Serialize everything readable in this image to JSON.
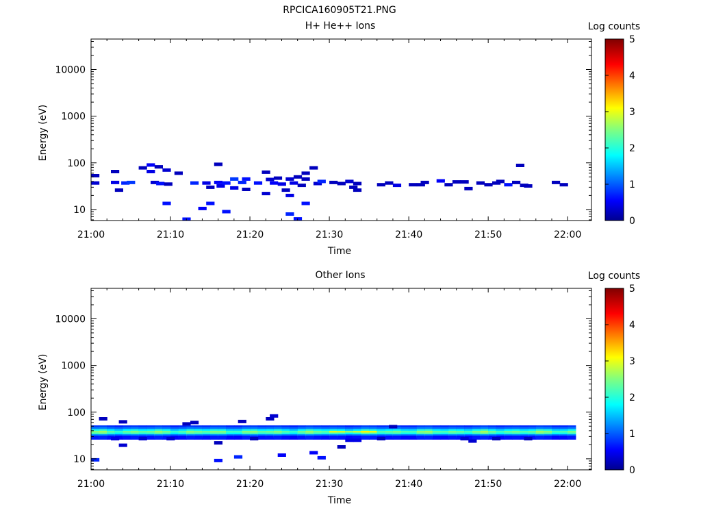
{
  "figure_title": "RPCICA160905T21.PNG",
  "chart_data": [
    {
      "type": "heatmap",
      "title": "H+ He++ Ions",
      "xlabel": "Time",
      "ylabel": "Energy (eV)",
      "x_ticks": [
        "21:00",
        "21:10",
        "21:20",
        "21:30",
        "21:40",
        "21:50",
        "22:00"
      ],
      "y_ticks": [
        "10",
        "100",
        "1000",
        "10000"
      ],
      "y_scale": "log",
      "ylim": [
        5.8,
        45000
      ],
      "xlim_minutes": [
        0,
        63
      ],
      "colorbar": {
        "label": "Log counts",
        "ticks": [
          "0",
          "1",
          "2",
          "3",
          "4",
          "5"
        ],
        "range": [
          0,
          5
        ]
      },
      "cells": [
        [
          0.0,
          53,
          0.3
        ],
        [
          0.0,
          37,
          0.4
        ],
        [
          2.5,
          65,
          0.3
        ],
        [
          2.5,
          38,
          0.5
        ],
        [
          3.0,
          26,
          0.3
        ],
        [
          3.8,
          37,
          0.8
        ],
        [
          4.5,
          38,
          0.9
        ],
        [
          6.0,
          78,
          0.3
        ],
        [
          7.0,
          90,
          0.6
        ],
        [
          7.0,
          65,
          0.5
        ],
        [
          7.5,
          38,
          0.4
        ],
        [
          8.0,
          82,
          0.3
        ],
        [
          8.2,
          36,
          0.7
        ],
        [
          9.0,
          70,
          0.4
        ],
        [
          9.2,
          35,
          0.3
        ],
        [
          9.0,
          13.5,
          0.7
        ],
        [
          10.5,
          60,
          0.3
        ],
        [
          11.5,
          6.2,
          0.7
        ],
        [
          12.5,
          37,
          0.8
        ],
        [
          13.5,
          10.5,
          0.6
        ],
        [
          14.0,
          37,
          0.5
        ],
        [
          14.5,
          30,
          0.3
        ],
        [
          14.5,
          13.5,
          0.7
        ],
        [
          15.5,
          93,
          0.3
        ],
        [
          15.5,
          38,
          0.6
        ],
        [
          15.8,
          32,
          0.5
        ],
        [
          16.5,
          37,
          0.7
        ],
        [
          16.5,
          9.0,
          0.7
        ],
        [
          17.5,
          45,
          0.9
        ],
        [
          17.5,
          29,
          0.5
        ],
        [
          18.5,
          38,
          0.8
        ],
        [
          19.0,
          27,
          0.3
        ],
        [
          19.0,
          45,
          0.7
        ],
        [
          20.5,
          37,
          0.7
        ],
        [
          21.5,
          63,
          0.3
        ],
        [
          21.5,
          22,
          0.4
        ],
        [
          22.0,
          44,
          0.4
        ],
        [
          22.5,
          37,
          0.6
        ],
        [
          23.0,
          47,
          0.3
        ],
        [
          23.5,
          35,
          0.5
        ],
        [
          24.0,
          26,
          0.3
        ],
        [
          24.5,
          45,
          0.4
        ],
        [
          24.5,
          20,
          0.5
        ],
        [
          24.5,
          8.0,
          0.8
        ],
        [
          25.0,
          37,
          0.5
        ],
        [
          25.5,
          50,
          0.3
        ],
        [
          25.5,
          6.3,
          0.7
        ],
        [
          26.0,
          33,
          0.3
        ],
        [
          26.5,
          60,
          0.3
        ],
        [
          26.5,
          45,
          0.3
        ],
        [
          26.5,
          13.5,
          0.7
        ],
        [
          27.5,
          78,
          0.3
        ],
        [
          28.0,
          36,
          0.4
        ],
        [
          28.5,
          40,
          0.8
        ],
        [
          30.0,
          38,
          0.3
        ],
        [
          31.0,
          36,
          0.3
        ],
        [
          32.0,
          40,
          0.4
        ],
        [
          32.5,
          30,
          0.3
        ],
        [
          33.0,
          36,
          0.3
        ],
        [
          33.0,
          26,
          0.3
        ],
        [
          36.0,
          34,
          0.3
        ],
        [
          37.0,
          37,
          0.3
        ],
        [
          38.0,
          33,
          0.5
        ],
        [
          40.0,
          34,
          0.3
        ],
        [
          41.0,
          34,
          0.3
        ],
        [
          41.5,
          38,
          0.3
        ],
        [
          43.5,
          41,
          0.6
        ],
        [
          44.5,
          34,
          0.3
        ],
        [
          45.5,
          39,
          0.3
        ],
        [
          46.5,
          39,
          0.3
        ],
        [
          47.0,
          28,
          0.3
        ],
        [
          48.5,
          37,
          0.3
        ],
        [
          49.5,
          34,
          0.3
        ],
        [
          50.5,
          37,
          0.3
        ],
        [
          51.0,
          40,
          0.3
        ],
        [
          52.0,
          34,
          0.7
        ],
        [
          53.0,
          38,
          0.3
        ],
        [
          53.5,
          88,
          0.3
        ],
        [
          54.0,
          33,
          0.3
        ],
        [
          54.5,
          32,
          0.3
        ],
        [
          58.0,
          38,
          0.3
        ],
        [
          59.0,
          34,
          0.3
        ]
      ]
    },
    {
      "type": "heatmap",
      "title": "Other Ions",
      "xlabel": "Time",
      "ylabel": "Energy (eV)",
      "x_ticks": [
        "21:00",
        "21:10",
        "21:20",
        "21:30",
        "21:40",
        "21:50",
        "22:00"
      ],
      "y_ticks": [
        "10",
        "100",
        "1000",
        "10000"
      ],
      "y_scale": "log",
      "ylim": [
        5.8,
        45000
      ],
      "xlim_minutes": [
        0,
        63
      ],
      "colorbar": {
        "label": "Log counts",
        "ticks": [
          "0",
          "1",
          "2",
          "3",
          "4",
          "5"
        ],
        "range": [
          0,
          5
        ]
      },
      "band": {
        "x_start_minutes": 0,
        "x_end_minutes": 61,
        "step_minutes": 1,
        "energies": [
          47.0,
          43.0,
          39.0,
          36.0,
          33.0,
          30.5,
          28.5
        ],
        "profile": [
          0.85,
          1.2,
          1.9,
          2.4,
          2.1,
          1.3,
          0.7
        ]
      },
      "cells": [
        [
          0.0,
          9.5,
          0.8
        ],
        [
          1.0,
          72,
          0.3
        ],
        [
          2.5,
          27,
          0.5
        ],
        [
          3.5,
          62,
          0.3
        ],
        [
          3.5,
          19.5,
          0.4
        ],
        [
          6.0,
          27,
          0.4
        ],
        [
          9.5,
          27,
          0.4
        ],
        [
          11.5,
          56,
          0.3
        ],
        [
          12.5,
          60,
          0.3
        ],
        [
          15.5,
          22,
          0.3
        ],
        [
          15.5,
          9.2,
          0.7
        ],
        [
          18.0,
          11.0,
          0.8
        ],
        [
          18.5,
          63,
          0.3
        ],
        [
          20.0,
          27,
          0.3
        ],
        [
          22.0,
          72,
          0.3
        ],
        [
          22.5,
          83,
          0.4
        ],
        [
          23.5,
          12.0,
          0.6
        ],
        [
          27.5,
          13.5,
          0.6
        ],
        [
          28.5,
          10.5,
          0.7
        ],
        [
          31.0,
          18,
          0.3
        ],
        [
          32.0,
          25,
          0.5
        ],
        [
          33.0,
          25,
          0.5
        ],
        [
          36.0,
          27,
          0.3
        ],
        [
          37.5,
          49,
          0.3
        ],
        [
          46.5,
          27,
          0.4
        ],
        [
          47.5,
          24,
          0.4
        ],
        [
          50.5,
          27,
          0.3
        ],
        [
          54.5,
          27,
          0.3
        ]
      ]
    }
  ]
}
